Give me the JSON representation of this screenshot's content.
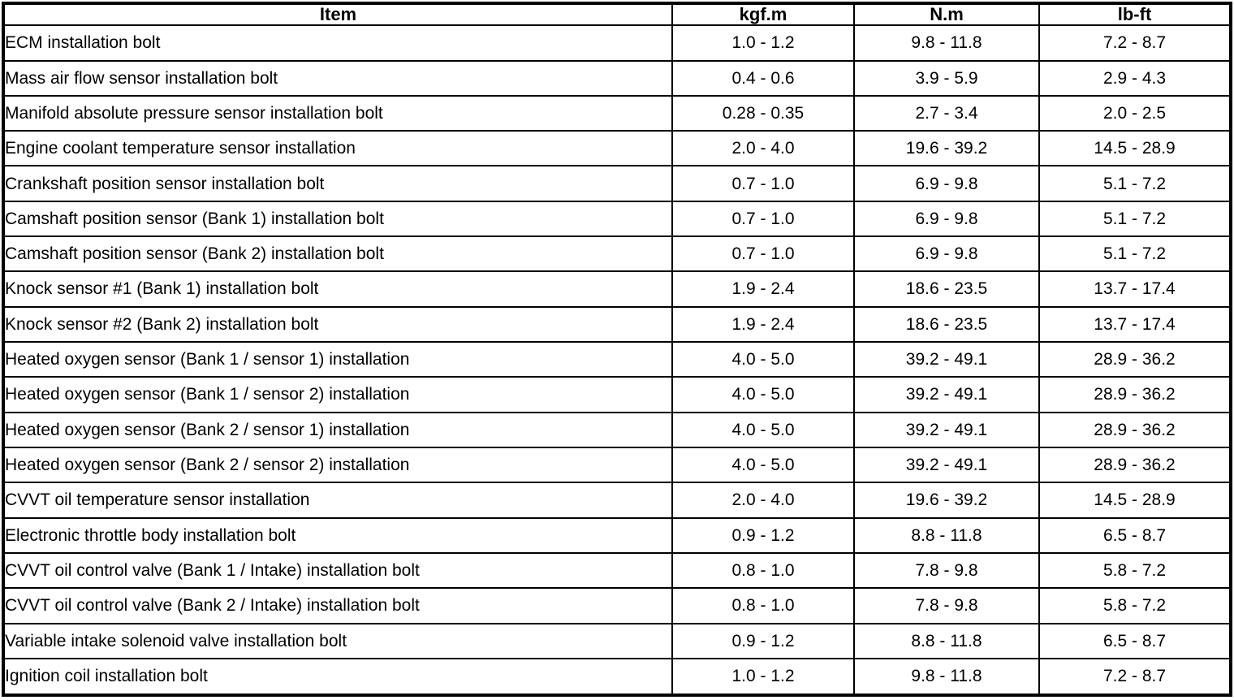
{
  "colors": {
    "border": "#000000",
    "background": "#ffffff",
    "text": "#000000"
  },
  "table": {
    "columns": [
      "Item",
      "kgf.m",
      "N.m",
      "lb-ft"
    ],
    "rows": [
      {
        "item": "ECM installation bolt",
        "kgfm": "1.0 - 1.2",
        "nm": "9.8 - 11.8",
        "lbft": "7.2 - 8.7"
      },
      {
        "item": "Mass air flow sensor installation bolt",
        "kgfm": "0.4 - 0.6",
        "nm": "3.9 - 5.9",
        "lbft": "2.9 - 4.3"
      },
      {
        "item": "Manifold absolute pressure sensor installation bolt",
        "kgfm": "0.28 - 0.35",
        "nm": "2.7 - 3.4",
        "lbft": "2.0 - 2.5"
      },
      {
        "item": "Engine coolant temperature sensor installation",
        "kgfm": "2.0 - 4.0",
        "nm": "19.6 - 39.2",
        "lbft": "14.5 - 28.9"
      },
      {
        "item": "Crankshaft position sensor installation bolt",
        "kgfm": "0.7 - 1.0",
        "nm": "6.9 - 9.8",
        "lbft": "5.1 - 7.2"
      },
      {
        "item": "Camshaft position sensor (Bank 1) installation bolt",
        "kgfm": "0.7 - 1.0",
        "nm": "6.9 - 9.8",
        "lbft": "5.1 - 7.2"
      },
      {
        "item": "Camshaft position sensor (Bank 2) installation bolt",
        "kgfm": "0.7 - 1.0",
        "nm": "6.9 - 9.8",
        "lbft": "5.1 - 7.2"
      },
      {
        "item": "Knock sensor #1 (Bank 1) installation bolt",
        "kgfm": "1.9 - 2.4",
        "nm": "18.6 - 23.5",
        "lbft": "13.7 - 17.4"
      },
      {
        "item": "Knock sensor #2 (Bank 2) installation bolt",
        "kgfm": "1.9 - 2.4",
        "nm": "18.6 - 23.5",
        "lbft": "13.7 - 17.4"
      },
      {
        "item": "Heated oxygen sensor (Bank 1 / sensor 1) installation",
        "kgfm": "4.0 - 5.0",
        "nm": "39.2 - 49.1",
        "lbft": "28.9 - 36.2"
      },
      {
        "item": "Heated oxygen sensor (Bank 1 / sensor 2) installation",
        "kgfm": "4.0 - 5.0",
        "nm": "39.2 - 49.1",
        "lbft": "28.9 - 36.2"
      },
      {
        "item": "Heated oxygen sensor (Bank 2 / sensor 1) installation",
        "kgfm": "4.0 - 5.0",
        "nm": "39.2 - 49.1",
        "lbft": "28.9 - 36.2"
      },
      {
        "item": "Heated oxygen sensor (Bank 2 / sensor 2) installation",
        "kgfm": "4.0 - 5.0",
        "nm": "39.2 - 49.1",
        "lbft": "28.9 - 36.2"
      },
      {
        "item": "CVVT oil temperature sensor installation",
        "kgfm": "2.0 - 4.0",
        "nm": "19.6 - 39.2",
        "lbft": "14.5 - 28.9"
      },
      {
        "item": "Electronic throttle body installation bolt",
        "kgfm": "0.9 - 1.2",
        "nm": "8.8 - 11.8",
        "lbft": "6.5 - 8.7"
      },
      {
        "item": "CVVT oil control valve (Bank 1 / Intake) installation bolt",
        "kgfm": "0.8 - 1.0",
        "nm": "7.8 - 9.8",
        "lbft": "5.8 - 7.2"
      },
      {
        "item": "CVVT oil control valve (Bank 2 / Intake) installation bolt",
        "kgfm": "0.8 - 1.0",
        "nm": "7.8 - 9.8",
        "lbft": "5.8 - 7.2"
      },
      {
        "item": "Variable intake solenoid valve installation bolt",
        "kgfm": "0.9 - 1.2",
        "nm": "8.8 - 11.8",
        "lbft": "6.5 - 8.7"
      },
      {
        "item": "Ignition coil installation bolt",
        "kgfm": "1.0 - 1.2",
        "nm": "9.8 - 11.8",
        "lbft": "7.2 - 8.7"
      }
    ]
  }
}
